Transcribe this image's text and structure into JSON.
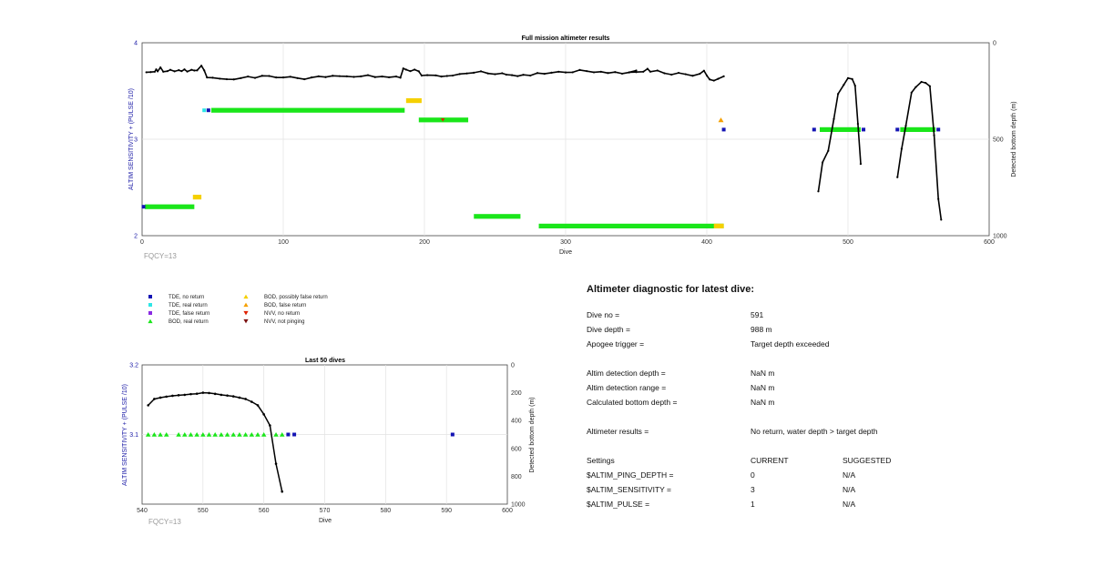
{
  "chart_data": [
    {
      "type": "scatter",
      "title": "Full mission altimeter results",
      "xlabel": "Dive",
      "ylabel": "ALTIM SENSITIVITY + (PULSE /10)",
      "y2label": "Detected bottom depth (m)",
      "xlim": [
        0,
        600
      ],
      "ylim": [
        2,
        4
      ],
      "y2lim": [
        0,
        1000
      ],
      "xticks": [
        "0",
        "100",
        "200",
        "300",
        "400",
        "500",
        "600"
      ],
      "yticks": [
        "2",
        "3",
        "4"
      ],
      "y2ticks": [
        "0",
        "500",
        "1000"
      ],
      "annotation": "FQCY=13",
      "grid": true,
      "bottom_depth_profile_segments": [
        [
          [
            3,
            153
          ],
          [
            6,
            152
          ],
          [
            9,
            150
          ],
          [
            10,
            138
          ],
          [
            11,
            148
          ],
          [
            13,
            128
          ],
          [
            15,
            150
          ],
          [
            18,
            147
          ],
          [
            20,
            140
          ],
          [
            23,
            148
          ],
          [
            26,
            142
          ],
          [
            28,
            147
          ],
          [
            30,
            138
          ],
          [
            32,
            149
          ],
          [
            35,
            140
          ],
          [
            37,
            144
          ],
          [
            39,
            143
          ],
          [
            42,
            119
          ],
          [
            44,
            143
          ],
          [
            46,
            180
          ],
          [
            50,
            181
          ],
          [
            55,
            186
          ],
          [
            60,
            189
          ],
          [
            65,
            190
          ],
          [
            70,
            183
          ],
          [
            75,
            175
          ],
          [
            80,
            182
          ],
          [
            85,
            171
          ],
          [
            90,
            172
          ],
          [
            95,
            180
          ],
          [
            100,
            180
          ],
          [
            105,
            176
          ],
          [
            110,
            183
          ],
          [
            115,
            189
          ],
          [
            120,
            180
          ],
          [
            125,
            174
          ],
          [
            130,
            178
          ],
          [
            135,
            171
          ],
          [
            140,
            173
          ],
          [
            145,
            174
          ],
          [
            150,
            177
          ],
          [
            155,
            174
          ],
          [
            160,
            168
          ],
          [
            165,
            178
          ],
          [
            170,
            175
          ],
          [
            175,
            179
          ],
          [
            180,
            175
          ],
          [
            183,
            181
          ],
          [
            185,
            133
          ],
          [
            187,
            139
          ],
          [
            190,
            147
          ],
          [
            193,
            139
          ],
          [
            196,
            148
          ],
          [
            198,
            170
          ],
          [
            202,
            168
          ],
          [
            208,
            169
          ],
          [
            212,
            175
          ],
          [
            216,
            172
          ],
          [
            220,
            170
          ],
          [
            225,
            162
          ],
          [
            230,
            159
          ],
          [
            235,
            155
          ],
          [
            240,
            148
          ],
          [
            245,
            159
          ],
          [
            250,
            163
          ],
          [
            255,
            158
          ],
          [
            258,
            165
          ],
          [
            262,
            168
          ],
          [
            266,
            173
          ],
          [
            270,
            166
          ],
          [
            275,
            170
          ],
          [
            280,
            157
          ],
          [
            285,
            161
          ],
          [
            290,
            155
          ],
          [
            295,
            150
          ],
          [
            300,
            154
          ],
          [
            305,
            153
          ],
          [
            310,
            141
          ],
          [
            315,
            147
          ],
          [
            320,
            153
          ],
          [
            325,
            150
          ],
          [
            330,
            157
          ],
          [
            335,
            152
          ],
          [
            340,
            160
          ],
          [
            345,
            154
          ],
          [
            350,
            144
          ],
          [
            345,
            153
          ],
          [
            350,
            152
          ],
          [
            355,
            150
          ],
          [
            358,
            135
          ],
          [
            360,
            150
          ],
          [
            365,
            144
          ],
          [
            370,
            158
          ],
          [
            375,
            165
          ],
          [
            380,
            156
          ],
          [
            385,
            163
          ],
          [
            390,
            171
          ],
          [
            395,
            161
          ],
          [
            398,
            145
          ],
          [
            400,
            170
          ],
          [
            402,
            190
          ],
          [
            405,
            196
          ],
          [
            408,
            187
          ],
          [
            412,
            174
          ]
        ],
        [
          [
            479,
            770
          ],
          [
            482,
            620
          ],
          [
            486,
            560
          ],
          [
            490,
            395
          ],
          [
            493,
            265
          ],
          [
            497,
            218
          ],
          [
            500,
            183
          ],
          [
            503,
            188
          ],
          [
            505,
            222
          ],
          [
            507,
            420
          ],
          [
            509,
            628
          ]
        ],
        [
          [
            535,
            697
          ],
          [
            538,
            550
          ],
          [
            541,
            430
          ],
          [
            545,
            258
          ],
          [
            548,
            230
          ],
          [
            552,
            203
          ],
          [
            555,
            208
          ],
          [
            558,
            225
          ],
          [
            561,
            480
          ],
          [
            564,
            810
          ],
          [
            566,
            917
          ]
        ]
      ],
      "bod_real_return_runs": [
        [
          2,
          37,
          2.3
        ],
        [
          49,
          186,
          3.3
        ],
        [
          196,
          231,
          3.2
        ],
        [
          235,
          268,
          2.2
        ],
        [
          281,
          412,
          2.1
        ],
        [
          480,
          509,
          3.1
        ],
        [
          537,
          562,
          3.1
        ]
      ],
      "bod_possibly_false_return_runs": [
        [
          36,
          42,
          2.4
        ],
        [
          187,
          198,
          3.4
        ],
        [
          405,
          412,
          2.1
        ]
      ],
      "bod_false_return_points": [
        [
          410,
          3.2
        ]
      ],
      "tde_no_return_points": [
        [
          1,
          2.3
        ],
        [
          47,
          3.3
        ],
        [
          412,
          3.1
        ],
        [
          476,
          3.1
        ],
        [
          511,
          3.1
        ],
        [
          535,
          3.1
        ],
        [
          564,
          3.1
        ]
      ],
      "tde_real_return_points": [
        [
          44,
          3.3
        ]
      ],
      "nvv_no_return_points": [
        [
          213,
          3.2
        ]
      ]
    },
    {
      "type": "scatter",
      "title": "Last 50 dives",
      "xlabel": "Dive",
      "ylabel": "ALTIM SENSITIVITY + (PULSE /10)",
      "y2label": "Detected bottom depth (m)",
      "xlim": [
        540,
        600
      ],
      "ylim": [
        3.0,
        3.2
      ],
      "y2lim": [
        0,
        1000
      ],
      "xticks": [
        "540",
        "550",
        "560",
        "570",
        "580",
        "590",
        "600"
      ],
      "yticks": [
        "3.1",
        "3.2"
      ],
      "y2ticks": [
        "0",
        "200",
        "400",
        "600",
        "800",
        "1000"
      ],
      "annotation": "FQCY=13",
      "grid": true,
      "bottom_depth_profile": [
        [
          541,
          290
        ],
        [
          542,
          245
        ],
        [
          543,
          235
        ],
        [
          544,
          228
        ],
        [
          545,
          222
        ],
        [
          546,
          218
        ],
        [
          547,
          215
        ],
        [
          548,
          210
        ],
        [
          549,
          207
        ],
        [
          550,
          200
        ],
        [
          551,
          202
        ],
        [
          552,
          208
        ],
        [
          553,
          215
        ],
        [
          554,
          220
        ],
        [
          555,
          226
        ],
        [
          556,
          235
        ],
        [
          557,
          245
        ],
        [
          558,
          265
        ],
        [
          559,
          290
        ],
        [
          560,
          355
        ],
        [
          561,
          435
        ],
        [
          562,
          710
        ],
        [
          563,
          910
        ]
      ],
      "bod_real_return_dives": [
        541,
        542,
        543,
        544,
        546,
        547,
        548,
        549,
        550,
        551,
        552,
        553,
        554,
        555,
        556,
        557,
        558,
        559,
        560,
        562,
        563
      ],
      "bod_value": 3.1,
      "tde_no_return_dives": [
        564,
        565,
        591
      ],
      "tde_value": 3.1
    }
  ],
  "legend": {
    "items": [
      {
        "label": "TDE, no return",
        "color": "#1414b4",
        "marker": "square"
      },
      {
        "label": "TDE, real return",
        "color": "#2ee6e6",
        "marker": "square"
      },
      {
        "label": "TDE, false return",
        "color": "#8a2be2",
        "marker": "square"
      },
      {
        "label": "BOD, real return",
        "color": "#1ae61a",
        "marker": "triangle-up"
      },
      {
        "label": "BOD, possibly false return",
        "color": "#f5d000",
        "marker": "triangle-up"
      },
      {
        "label": "BOD, false return",
        "color": "#f5a000",
        "marker": "triangle-up"
      },
      {
        "label": "NVV, no return",
        "color": "#e02000",
        "marker": "triangle-down"
      },
      {
        "label": "NVV, not pinging",
        "color": "#7a1010",
        "marker": "triangle-down"
      }
    ]
  },
  "diagnostic": {
    "heading": "Altimeter diagnostic for latest dive:",
    "dive_no": {
      "label": "Dive no =",
      "value": "591"
    },
    "dive_depth": {
      "label": "Dive depth =",
      "value": "988 m"
    },
    "apogee_trigger": {
      "label": "Apogee trigger =",
      "value": "Target depth exceeded"
    },
    "altim_detection_depth": {
      "label": "Altim detection depth =",
      "value": "NaN m"
    },
    "altim_detection_range": {
      "label": "Altim detection range =",
      "value": "NaN m"
    },
    "calculated_bottom_depth": {
      "label": "Calculated bottom depth =",
      "value": "NaN m"
    },
    "altimeter_results": {
      "label": "Altimeter results =",
      "value": "No return, water depth > target depth"
    },
    "settings": {
      "label": "Settings",
      "current_header": "CURRENT",
      "suggested_header": "SUGGESTED"
    },
    "ping_depth": {
      "label": "$ALTIM_PING_DEPTH =",
      "current": "0",
      "suggested": "N/A"
    },
    "sensitivity": {
      "label": "$ALTIM_SENSITIVITY =",
      "current": "3",
      "suggested": "N/A"
    },
    "pulse": {
      "label": "$ALTIM_PULSE =",
      "current": "1",
      "suggested": "N/A"
    }
  }
}
